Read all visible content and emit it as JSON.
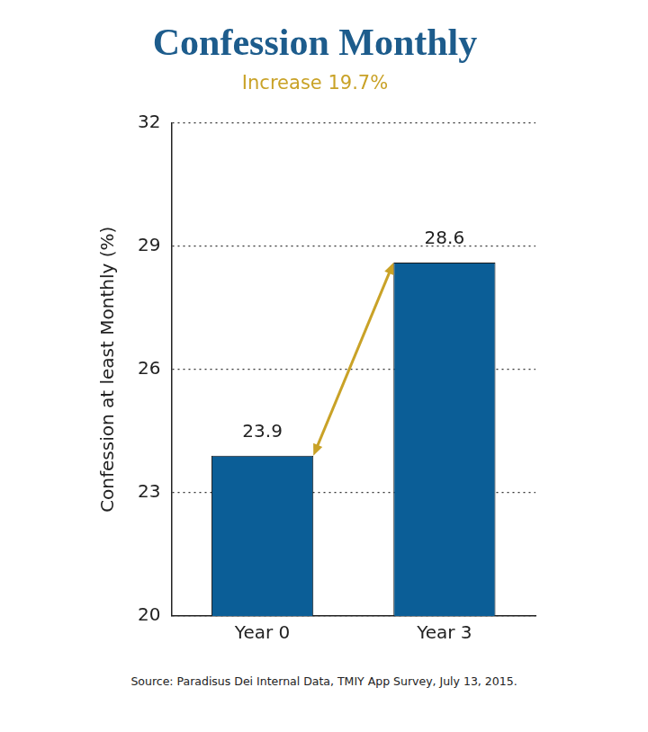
{
  "chart_data": {
    "type": "bar",
    "title": "Confession Monthly",
    "subtitle": "Increase 19.7%",
    "y_label": "Confession at least Monthly (%)",
    "categories": [
      "Year 0",
      "Year 3"
    ],
    "values": [
      23.9,
      28.6
    ],
    "color": "#0b5e97",
    "ylim": [
      20,
      32
    ],
    "yticks": [
      20,
      23,
      26,
      29,
      32
    ],
    "grid": true,
    "data_labels": true,
    "source": "Source: Paradisus Dei Internal Data, TMIY App Survey, July 13, 2015."
  }
}
